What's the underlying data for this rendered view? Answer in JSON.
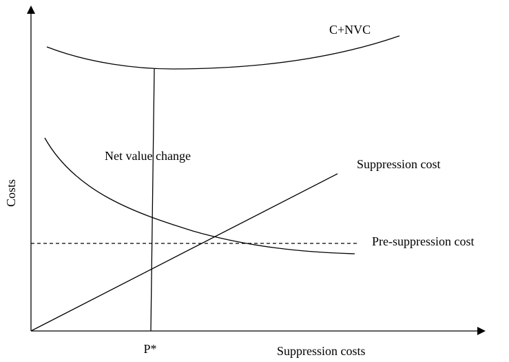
{
  "axes": {
    "y_label": "Costs",
    "x_label": "Suppression costs",
    "x_marker": "P*"
  },
  "curves": {
    "total": "C+NVC",
    "net_value": "Net value change",
    "suppression": "Suppression cost",
    "pre_suppression": "Pre-suppression cost"
  }
}
